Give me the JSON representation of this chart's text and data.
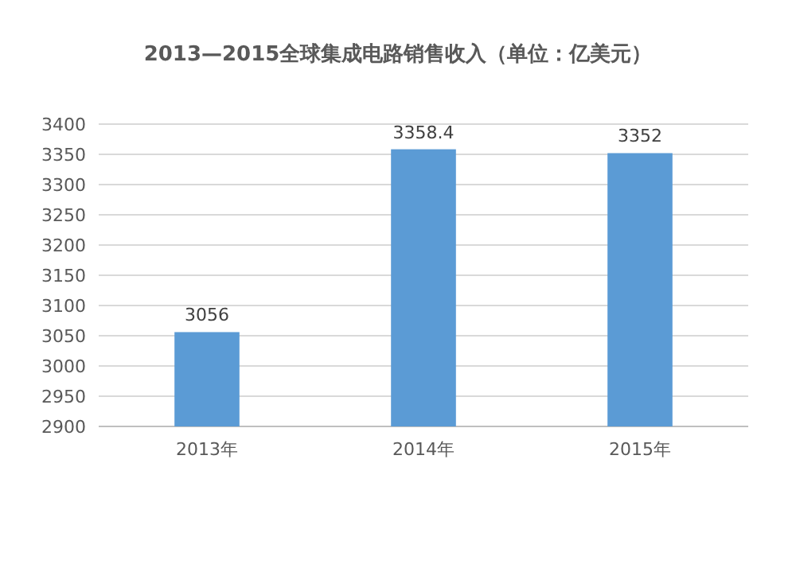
{
  "chart_data": {
    "type": "bar",
    "title": "2013—2015全球集成电路销售收入（单位：亿美元）",
    "categories": [
      "2013年",
      "2014年",
      "2015年"
    ],
    "values": [
      3056,
      3358.4,
      3352
    ],
    "color": "#5b9bd5",
    "value_labels": [
      "3056",
      "3358.4",
      "3352"
    ],
    "ylim": [
      2900,
      3400
    ],
    "yticks": [
      2900,
      2950,
      3000,
      3050,
      3100,
      3150,
      3200,
      3250,
      3300,
      3350,
      3400
    ],
    "grid": "y"
  }
}
